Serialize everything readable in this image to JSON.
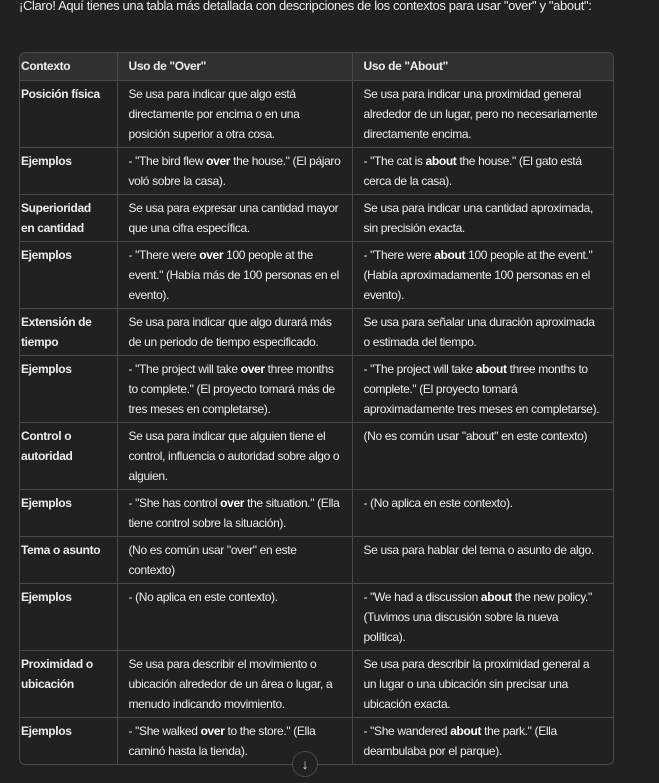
{
  "intro": "¡Claro! Aquí tienes una tabla más detallada con descripciones de los contextos para usar \"over\" y \"about\":",
  "table": {
    "headers": [
      "Contexto",
      "Uso de \"Over\"",
      "Uso de \"About\""
    ],
    "rows": [
      {
        "context": "Posición física",
        "over": {
          "text": "Se usa para indicar que algo está directamente por encima o en una posición superior a otra cosa."
        },
        "about": {
          "text": "Se usa para indicar una proximidad general alrededor de un lugar, pero no necesariamente directamente encima."
        }
      },
      {
        "context": "Ejemplos",
        "over": {
          "pre": "- \"The bird flew ",
          "bold": "over",
          "post": " the house.\" (El pájaro voló sobre la casa)."
        },
        "about": {
          "pre": "- \"The cat is ",
          "bold": "about",
          "post": " the house.\" (El gato está cerca de la casa)."
        }
      },
      {
        "context": "Superioridad en cantidad",
        "over": {
          "text": "Se usa para expresar una cantidad mayor que una cifra específica."
        },
        "about": {
          "text": "Se usa para indicar una cantidad aproximada, sin precisión exacta."
        }
      },
      {
        "context": "Ejemplos",
        "over": {
          "pre": "- \"There were ",
          "bold": "over",
          "post": " 100 people at the event.\" (Había más de 100 personas en el evento)."
        },
        "about": {
          "pre": "- \"There were ",
          "bold": "about",
          "post": " 100 people at the event.\" (Había aproximadamente 100 personas en el evento)."
        }
      },
      {
        "context": "Extensión de tiempo",
        "over": {
          "text": "Se usa para indicar que algo durará más de un periodo de tiempo especificado."
        },
        "about": {
          "text": "Se usa para señalar una duración aproximada o estimada del tiempo."
        }
      },
      {
        "context": "Ejemplos",
        "over": {
          "pre": "- \"The project will take ",
          "bold": "over",
          "post": " three months to complete.\" (El proyecto tomará más de tres meses en completarse)."
        },
        "about": {
          "pre": "- \"The project will take ",
          "bold": "about",
          "post": " three months to complete.\" (El proyecto tomará aproximadamente tres meses en completarse)."
        }
      },
      {
        "context": "Control o autoridad",
        "over": {
          "text": "Se usa para indicar que alguien tiene el control, influencia o autoridad sobre algo o alguien."
        },
        "about": {
          "text": "(No es común usar \"about\" en este contexto)"
        }
      },
      {
        "context": "Ejemplos",
        "over": {
          "pre": "- \"She has control ",
          "bold": "over",
          "post": " the situation.\" (Ella tiene control sobre la situación)."
        },
        "about": {
          "text": "- (No aplica en este contexto)."
        }
      },
      {
        "context": "Tema o asunto",
        "over": {
          "text": "(No es común usar \"over\" en este contexto)"
        },
        "about": {
          "text": "Se usa para hablar del tema o asunto de algo."
        }
      },
      {
        "context": "Ejemplos",
        "over": {
          "text": "- (No aplica en este contexto)."
        },
        "about": {
          "pre": "- \"We had a discussion ",
          "bold": "about",
          "post": " the new policy.\" (Tuvimos una discusión sobre la nueva política)."
        }
      },
      {
        "context": "Proximidad o ubicación",
        "over": {
          "text": "Se usa para describir el movimiento o ubicación alrededor de un área o lugar, a menudo indicando movimiento."
        },
        "about": {
          "text": "Se usa para describir la proximidad general a un lugar o una ubicación sin precisar una ubicación exacta."
        }
      },
      {
        "context": "Ejemplos",
        "over": {
          "pre": "- \"She walked ",
          "bold": "over",
          "post": " to the store.\" (Ella caminó hasta la tienda)."
        },
        "about": {
          "pre": "- \"She wandered ",
          "bold": "about",
          "post": " the park.\" (Ella deambulaba por el parque)."
        }
      }
    ]
  },
  "scroll_button": {
    "icon": "arrow-down-icon",
    "glyph": "↓"
  }
}
